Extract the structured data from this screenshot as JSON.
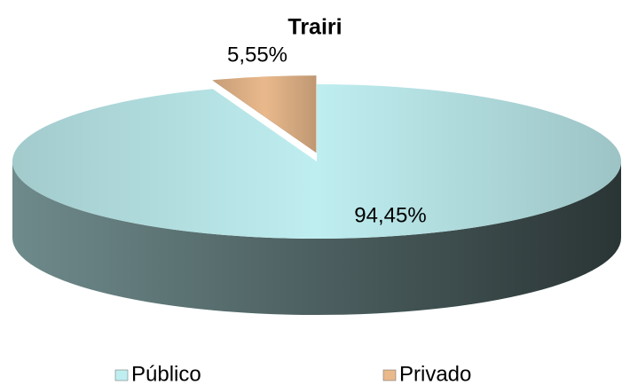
{
  "chart_data": {
    "type": "pie3d",
    "title": "Trairi",
    "categories": [
      "Público",
      "Privado"
    ],
    "values": [
      94.45,
      5.55
    ],
    "value_labels": [
      "94,45%",
      "5,55%"
    ],
    "colors": [
      "#bfeef0",
      "#e9b98c"
    ]
  }
}
